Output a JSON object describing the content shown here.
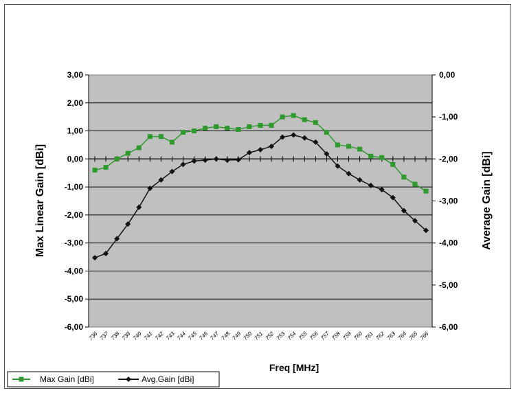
{
  "chart_data": {
    "type": "line",
    "xlabel": "Freq [MHz]",
    "ylabel_left": "Max Linear Gain [dBi]",
    "ylabel_right": "Average Gain [dBi]",
    "ylim_left": [
      -6,
      3
    ],
    "ylim_right": [
      -6,
      0
    ],
    "yticks_left": [
      "3,00",
      "2,00",
      "1,00",
      "0,00",
      "-1,00",
      "-2,00",
      "-3,00",
      "-4,00",
      "-5,00",
      "-6,00"
    ],
    "yticks_right": [
      "0,00",
      "-1,00",
      "-2,00",
      "-3,00",
      "-4,00",
      "-5,00",
      "-6,00"
    ],
    "grid": true,
    "legend_position": "bottom-left",
    "x": [
      736,
      737,
      738,
      739,
      740,
      741,
      742,
      743,
      744,
      745,
      746,
      747,
      748,
      749,
      750,
      751,
      752,
      753,
      754,
      755,
      756,
      757,
      758,
      759,
      760,
      761,
      762,
      763,
      764,
      765,
      766
    ],
    "series": [
      {
        "name": "Max Gain [dBi]",
        "axis": "left",
        "color": "#2e9a2e",
        "marker": "square",
        "values": [
          -0.4,
          -0.3,
          0.0,
          0.2,
          0.4,
          0.8,
          0.8,
          0.6,
          0.95,
          1.0,
          1.1,
          1.15,
          1.1,
          1.05,
          1.15,
          1.2,
          1.2,
          1.5,
          1.55,
          1.4,
          1.3,
          0.95,
          0.5,
          0.45,
          0.35,
          0.1,
          0.05,
          -0.2,
          -0.65,
          -0.9,
          -1.15
        ]
      },
      {
        "name": "Avg.Gain [dBi]",
        "axis": "right",
        "color": "#111111",
        "marker": "diamond",
        "values": [
          -4.35,
          -4.25,
          -3.9,
          -3.55,
          -3.15,
          -2.7,
          -2.5,
          -2.3,
          -2.13,
          -2.05,
          -2.03,
          -2.0,
          -2.03,
          -2.02,
          -1.85,
          -1.78,
          -1.7,
          -1.48,
          -1.43,
          -1.5,
          -1.6,
          -1.88,
          -2.17,
          -2.35,
          -2.5,
          -2.63,
          -2.73,
          -2.92,
          -3.23,
          -3.47,
          -3.7
        ]
      }
    ]
  }
}
